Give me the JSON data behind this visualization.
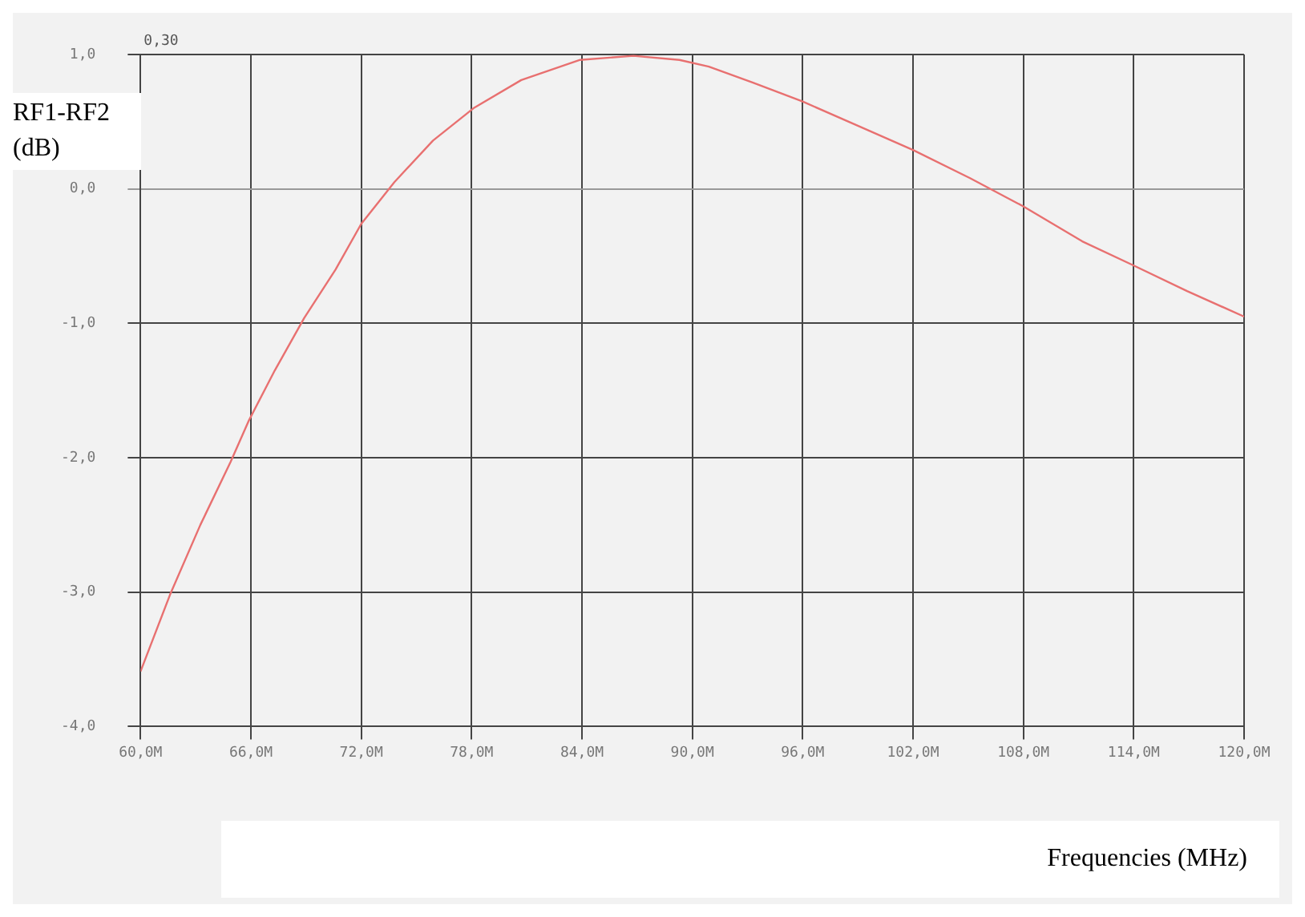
{
  "chart_data": {
    "type": "line",
    "xlabel": "Frequencies (MHz)",
    "ylabel": "RF1-RF2 (dB)",
    "annotations": [
      "0,30"
    ],
    "series": [
      {
        "color": "#e87070",
        "x": [
          60,
          61.6,
          63.25,
          64.9,
          65.9,
          67.3,
          68.9,
          70.6,
          72,
          73.8,
          75.9,
          78.1,
          80.7,
          83.9,
          86.8,
          89.3,
          90.9,
          93.3,
          96,
          99,
          102,
          105.1,
          108,
          111.2,
          114,
          116.9,
          120
        ],
        "values": [
          -3.59,
          -3.02,
          -2.5,
          -2.03,
          -1.72,
          -1.35,
          -0.96,
          -0.6,
          -0.26,
          0.05,
          0.36,
          0.6,
          0.81,
          0.96,
          0.99,
          0.96,
          0.91,
          0.79,
          0.65,
          0.47,
          0.29,
          0.08,
          -0.13,
          -0.39,
          -0.57,
          -0.76,
          -0.95
        ]
      }
    ],
    "xlim": [
      60,
      120
    ],
    "ylim": [
      -4,
      1
    ],
    "xticks": [
      {
        "value": 60,
        "label": "60,0M"
      },
      {
        "value": 66,
        "label": "66,0M"
      },
      {
        "value": 72,
        "label": "72,0M"
      },
      {
        "value": 78,
        "label": "78,0M"
      },
      {
        "value": 84,
        "label": "84,0M"
      },
      {
        "value": 90,
        "label": "90,0M"
      },
      {
        "value": 96,
        "label": "96,0M"
      },
      {
        "value": 102,
        "label": "102,0M"
      },
      {
        "value": 108,
        "label": "108,0M"
      },
      {
        "value": 114,
        "label": "114,0M"
      },
      {
        "value": 120,
        "label": "120,0M"
      }
    ],
    "yticks": [
      {
        "value": -4,
        "label": "-4,0"
      },
      {
        "value": -3,
        "label": "-3,0"
      },
      {
        "value": -2,
        "label": "-2,0"
      },
      {
        "value": -1,
        "label": "-1,0"
      },
      {
        "value": 0,
        "label": "0,0"
      },
      {
        "value": 1,
        "label": "1,0"
      }
    ],
    "grid": true,
    "legend": false,
    "marker": "none",
    "line_style": "solid"
  }
}
